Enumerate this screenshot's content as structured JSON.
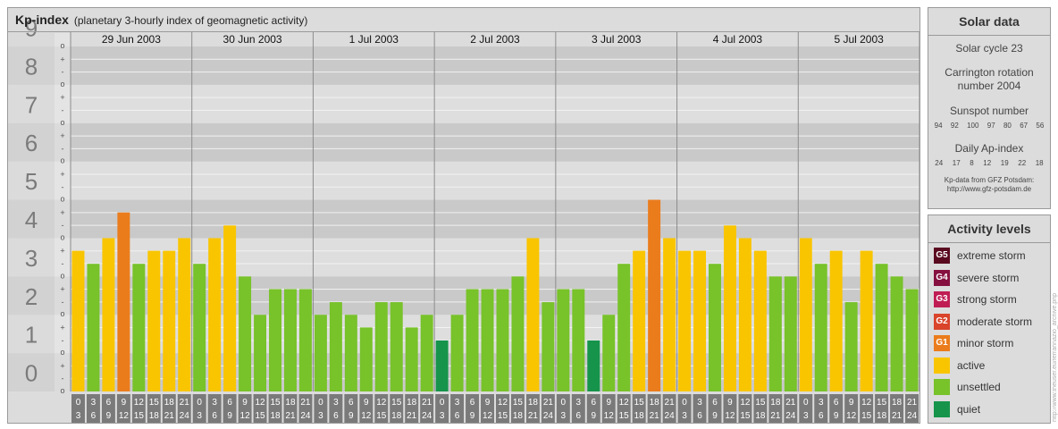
{
  "header": {
    "title": "Kp-index",
    "subtitle": "(planetary 3-hourly index of geomagnetic activity)"
  },
  "chart_data": {
    "type": "bar",
    "ylim": [
      0,
      9
    ],
    "y_ticks": [
      "0",
      "1",
      "2",
      "3",
      "4",
      "5",
      "6",
      "7",
      "8",
      "9"
    ],
    "sub_ticks": [
      "o",
      "-",
      "+"
    ],
    "days": [
      "29 Jun 2003",
      "30 Jun 2003",
      "1 Jul 2003",
      "2 Jul 2003",
      "3 Jul 2003",
      "4 Jul 2003",
      "5 Jul 2003"
    ],
    "intervals": [
      [
        "0",
        "3"
      ],
      [
        "3",
        "6"
      ],
      [
        "6",
        "9"
      ],
      [
        "9",
        "12"
      ],
      [
        "12",
        "15"
      ],
      [
        "15",
        "18"
      ],
      [
        "18",
        "21"
      ],
      [
        "21",
        "24"
      ]
    ],
    "values": [
      3.67,
      3.33,
      4,
      4.67,
      3.33,
      3.67,
      3.67,
      4,
      3.33,
      4,
      4.33,
      3,
      2,
      2.67,
      2.67,
      2.67,
      2,
      2.33,
      2,
      1.67,
      2.33,
      2.33,
      1.67,
      2,
      1.33,
      2,
      2.67,
      2.67,
      2.67,
      3,
      4,
      2.33,
      2.67,
      2.67,
      1.33,
      2,
      3.33,
      3.67,
      5,
      4,
      3.67,
      3.67,
      3.33,
      4.33,
      4,
      3.67,
      3,
      3,
      4,
      3.33,
      3.67,
      2.33,
      3.67,
      3.33,
      3,
      2.67
    ],
    "colors": {
      "quiet": "#16944b",
      "unsettled": "#78c22a",
      "active": "#f9c500",
      "minor": "#eb7c1c"
    }
  },
  "solar": {
    "title": "Solar data",
    "cycle": "Solar cycle 23",
    "carrington": "Carrington rotation number 2004",
    "sunspot_label": "Sunspot number",
    "sunspots": [
      "94",
      "92",
      "100",
      "97",
      "80",
      "67",
      "56"
    ],
    "ap_label": "Daily Ap-index",
    "ap": [
      "24",
      "17",
      "8",
      "12",
      "19",
      "22",
      "18"
    ],
    "credit_line1": "Kp-data from GFZ Potsdam:",
    "credit_line2": "http://www.gfz-potsdam.de"
  },
  "activity": {
    "title": "Activity levels",
    "levels": [
      {
        "code": "G5",
        "label": "extreme storm",
        "color": "#5a0a1f"
      },
      {
        "code": "G4",
        "label": "severe storm",
        "color": "#85103f"
      },
      {
        "code": "G3",
        "label": "strong storm",
        "color": "#c01c54"
      },
      {
        "code": "G2",
        "label": "moderate storm",
        "color": "#d9442a"
      },
      {
        "code": "G1",
        "label": "minor storm",
        "color": "#eb7c1c"
      },
      {
        "code": "",
        "label": "active",
        "color": "#f9c500"
      },
      {
        "code": "",
        "label": "unsettled",
        "color": "#78c22a"
      },
      {
        "code": "",
        "label": "quiet",
        "color": "#16944b"
      }
    ]
  },
  "credit_vertical": "http://www.theuser.eu/ferrahnazio_archive.php"
}
